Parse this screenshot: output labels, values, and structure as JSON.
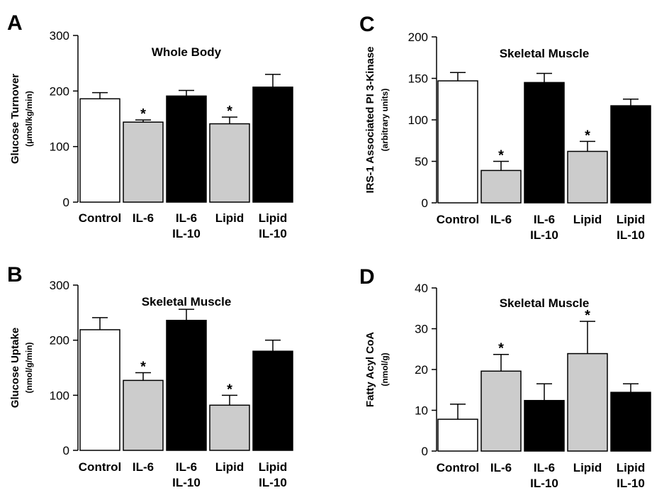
{
  "chart_data": [
    {
      "panel": "A",
      "type": "bar",
      "title": "Whole Body",
      "ylabel": "Glucose Turnover",
      "yunit": "(μmol/kg/min)",
      "ylim": [
        0,
        300
      ],
      "yticks": [
        0,
        100,
        200,
        300
      ],
      "categories": [
        [
          "Control"
        ],
        [
          "IL-6"
        ],
        [
          "IL-6",
          "IL-10"
        ],
        [
          "Lipid"
        ],
        [
          "Lipid",
          "IL-10"
        ]
      ],
      "values": [
        186,
        144,
        191,
        141,
        207
      ],
      "errors": [
        11,
        4,
        10,
        12,
        23
      ],
      "significant": [
        false,
        true,
        false,
        true,
        false
      ],
      "colors": [
        "#ffffff",
        "#cccccc",
        "#000000",
        "#cccccc",
        "#000000"
      ]
    },
    {
      "panel": "B",
      "type": "bar",
      "title": "Skeletal Muscle",
      "ylabel": "Glucose Uptake",
      "yunit": "(nmol/g/min)",
      "ylim": [
        0,
        300
      ],
      "yticks": [
        0,
        100,
        200,
        300
      ],
      "categories": [
        [
          "Control"
        ],
        [
          "IL-6"
        ],
        [
          "IL-6",
          "IL-10"
        ],
        [
          "Lipid"
        ],
        [
          "Lipid",
          "IL-10"
        ]
      ],
      "values": [
        219,
        127,
        236,
        82,
        180
      ],
      "errors": [
        22,
        14,
        20,
        18,
        20
      ],
      "significant": [
        false,
        true,
        false,
        true,
        false
      ],
      "colors": [
        "#ffffff",
        "#cccccc",
        "#000000",
        "#cccccc",
        "#000000"
      ]
    },
    {
      "panel": "C",
      "type": "bar",
      "title": "Skeletal Muscle",
      "ylabel": "IRS-1 Associated PI 3-Kinase",
      "yunit": "(arbitrary units)",
      "ylim": [
        0,
        200
      ],
      "yticks": [
        0,
        50,
        100,
        150,
        200
      ],
      "categories": [
        [
          "Control"
        ],
        [
          "IL-6"
        ],
        [
          "IL-6",
          "IL-10"
        ],
        [
          "Lipid"
        ],
        [
          "Lipid",
          "IL-10"
        ]
      ],
      "values": [
        147,
        39,
        145,
        62,
        117
      ],
      "errors": [
        10,
        11,
        11,
        12,
        8
      ],
      "significant": [
        false,
        true,
        false,
        true,
        false
      ],
      "colors": [
        "#ffffff",
        "#cccccc",
        "#000000",
        "#cccccc",
        "#000000"
      ]
    },
    {
      "panel": "D",
      "type": "bar",
      "title": "Skeletal Muscle",
      "ylabel": "Fatty Acyl CoA",
      "yunit": "(nmol/g)",
      "ylim": [
        0,
        40
      ],
      "yticks": [
        0,
        10,
        20,
        30,
        40
      ],
      "categories": [
        [
          "Control"
        ],
        [
          "IL-6"
        ],
        [
          "IL-6",
          "IL-10"
        ],
        [
          "Lipid"
        ],
        [
          "Lipid",
          "IL-10"
        ]
      ],
      "values": [
        7.8,
        19.6,
        12.4,
        23.9,
        14.4
      ],
      "errors": [
        3.7,
        4.1,
        4.1,
        7.9,
        2.1
      ],
      "significant": [
        false,
        true,
        false,
        true,
        false
      ],
      "colors": [
        "#ffffff",
        "#cccccc",
        "#000000",
        "#cccccc",
        "#000000"
      ]
    }
  ]
}
